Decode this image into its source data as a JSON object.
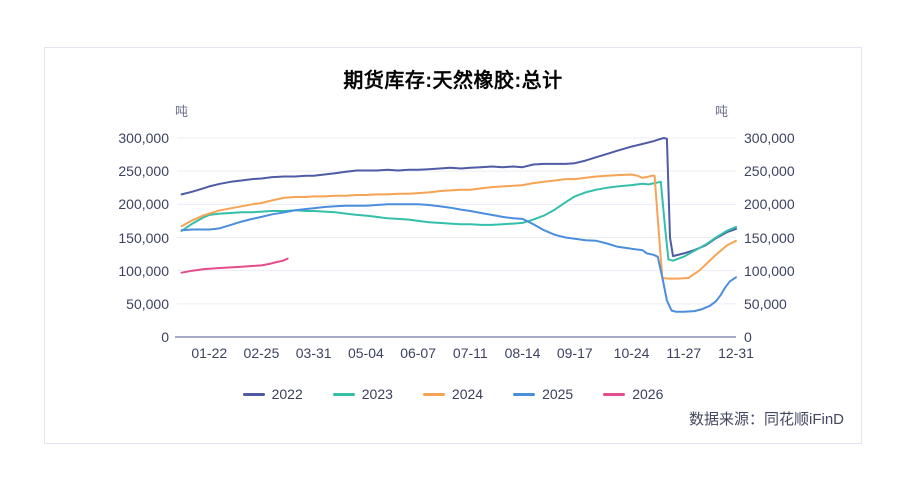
{
  "chart": {
    "title": "期货库存:天然橡胶:总计",
    "unit_left": "吨",
    "unit_right": "吨",
    "source": "数据来源：同花顺iFinD"
  },
  "chart_data": {
    "type": "line",
    "title": "期货库存:天然橡胶:总计",
    "ylabel": "吨",
    "ylim": [
      0,
      300000
    ],
    "grid": true,
    "legend_position": "bottom",
    "colors": {
      "grid_line": "#ECECF4",
      "axis_line": "#A8ABC8",
      "tick_text": "#3D4263"
    },
    "y_ticks": [
      {
        "label": "0",
        "value": 0
      },
      {
        "label": "50,000",
        "value": 50000
      },
      {
        "label": "100,000",
        "value": 100000
      },
      {
        "label": "150,000",
        "value": 150000
      },
      {
        "label": "200,000",
        "value": 200000
      },
      {
        "label": "250,000",
        "value": 250000
      },
      {
        "label": "300,000",
        "value": 300000
      }
    ],
    "x_ticks": [
      {
        "label": "01-22",
        "day": 21
      },
      {
        "label": "02-25",
        "day": 55
      },
      {
        "label": "03-31",
        "day": 89
      },
      {
        "label": "05-04",
        "day": 123
      },
      {
        "label": "06-07",
        "day": 157
      },
      {
        "label": "07-11",
        "day": 191
      },
      {
        "label": "08-14",
        "day": 225
      },
      {
        "label": "09-17",
        "day": 259
      },
      {
        "label": "10-24",
        "day": 296
      },
      {
        "label": "11-27",
        "day": 330
      },
      {
        "label": "12-31",
        "day": 364
      }
    ],
    "x_domain_days": 364,
    "series": [
      {
        "name": "2022",
        "color": "#4F5BA4",
        "points": [
          [
            3,
            215000
          ],
          [
            10,
            219000
          ],
          [
            17,
            224000
          ],
          [
            21,
            227000
          ],
          [
            28,
            231000
          ],
          [
            35,
            234000
          ],
          [
            42,
            236000
          ],
          [
            49,
            238000
          ],
          [
            55,
            239000
          ],
          [
            62,
            241000
          ],
          [
            70,
            242000
          ],
          [
            77,
            242000
          ],
          [
            84,
            243000
          ],
          [
            89,
            243000
          ],
          [
            96,
            245000
          ],
          [
            103,
            247000
          ],
          [
            110,
            249000
          ],
          [
            117,
            251000
          ],
          [
            123,
            251000
          ],
          [
            130,
            251000
          ],
          [
            137,
            252000
          ],
          [
            144,
            251000
          ],
          [
            151,
            252000
          ],
          [
            157,
            252000
          ],
          [
            164,
            253000
          ],
          [
            171,
            254000
          ],
          [
            178,
            255000
          ],
          [
            185,
            254000
          ],
          [
            191,
            255000
          ],
          [
            198,
            256000
          ],
          [
            205,
            257000
          ],
          [
            212,
            256000
          ],
          [
            219,
            257000
          ],
          [
            225,
            256000
          ],
          [
            232,
            260000
          ],
          [
            239,
            261000
          ],
          [
            246,
            261000
          ],
          [
            253,
            261000
          ],
          [
            259,
            262000
          ],
          [
            266,
            266000
          ],
          [
            273,
            271000
          ],
          [
            280,
            276000
          ],
          [
            287,
            281000
          ],
          [
            296,
            287000
          ],
          [
            303,
            291000
          ],
          [
            310,
            295000
          ],
          [
            314,
            298000
          ],
          [
            317,
            300000
          ],
          [
            319,
            299000
          ],
          [
            321,
            150000
          ],
          [
            323,
            122000
          ],
          [
            330,
            126000
          ],
          [
            337,
            131000
          ],
          [
            344,
            138000
          ],
          [
            351,
            149000
          ],
          [
            358,
            158000
          ],
          [
            364,
            163000
          ]
        ]
      },
      {
        "name": "2023",
        "color": "#34BFAA",
        "points": [
          [
            3,
            160000
          ],
          [
            10,
            171000
          ],
          [
            17,
            180000
          ],
          [
            21,
            184000
          ],
          [
            28,
            186000
          ],
          [
            35,
            187000
          ],
          [
            42,
            188000
          ],
          [
            49,
            188000
          ],
          [
            55,
            189000
          ],
          [
            62,
            190000
          ],
          [
            70,
            190000
          ],
          [
            77,
            191000
          ],
          [
            84,
            190000
          ],
          [
            89,
            190000
          ],
          [
            96,
            189000
          ],
          [
            103,
            188000
          ],
          [
            110,
            186000
          ],
          [
            117,
            184000
          ],
          [
            123,
            183000
          ],
          [
            130,
            181000
          ],
          [
            137,
            179000
          ],
          [
            144,
            178000
          ],
          [
            151,
            177000
          ],
          [
            157,
            175000
          ],
          [
            164,
            173000
          ],
          [
            171,
            172000
          ],
          [
            178,
            171000
          ],
          [
            185,
            170000
          ],
          [
            191,
            170000
          ],
          [
            198,
            169000
          ],
          [
            205,
            169000
          ],
          [
            212,
            170000
          ],
          [
            219,
            171000
          ],
          [
            225,
            172000
          ],
          [
            232,
            177000
          ],
          [
            239,
            183000
          ],
          [
            246,
            192000
          ],
          [
            253,
            203000
          ],
          [
            259,
            212000
          ],
          [
            266,
            218000
          ],
          [
            273,
            222000
          ],
          [
            280,
            225000
          ],
          [
            287,
            227000
          ],
          [
            296,
            229000
          ],
          [
            303,
            231000
          ],
          [
            307,
            230000
          ],
          [
            311,
            232000
          ],
          [
            315,
            234000
          ],
          [
            318,
            160000
          ],
          [
            320,
            117000
          ],
          [
            323,
            115000
          ],
          [
            330,
            121000
          ],
          [
            337,
            130000
          ],
          [
            344,
            139000
          ],
          [
            351,
            150000
          ],
          [
            358,
            160000
          ],
          [
            364,
            166000
          ]
        ]
      },
      {
        "name": "2024",
        "color": "#F6A354",
        "points": [
          [
            3,
            167000
          ],
          [
            10,
            176000
          ],
          [
            17,
            183000
          ],
          [
            21,
            186000
          ],
          [
            28,
            191000
          ],
          [
            35,
            194000
          ],
          [
            42,
            197000
          ],
          [
            49,
            200000
          ],
          [
            55,
            202000
          ],
          [
            62,
            206000
          ],
          [
            70,
            210000
          ],
          [
            77,
            211000
          ],
          [
            84,
            211000
          ],
          [
            89,
            212000
          ],
          [
            96,
            212000
          ],
          [
            103,
            213000
          ],
          [
            110,
            213000
          ],
          [
            117,
            214000
          ],
          [
            123,
            214000
          ],
          [
            130,
            215000
          ],
          [
            137,
            215000
          ],
          [
            144,
            216000
          ],
          [
            151,
            216000
          ],
          [
            157,
            217000
          ],
          [
            164,
            218000
          ],
          [
            171,
            220000
          ],
          [
            178,
            221000
          ],
          [
            185,
            222000
          ],
          [
            191,
            222000
          ],
          [
            198,
            224000
          ],
          [
            205,
            226000
          ],
          [
            212,
            227000
          ],
          [
            219,
            228000
          ],
          [
            225,
            229000
          ],
          [
            232,
            232000
          ],
          [
            239,
            234000
          ],
          [
            246,
            236000
          ],
          [
            253,
            238000
          ],
          [
            259,
            238000
          ],
          [
            266,
            240000
          ],
          [
            273,
            242000
          ],
          [
            280,
            243000
          ],
          [
            287,
            244000
          ],
          [
            296,
            245000
          ],
          [
            300,
            243000
          ],
          [
            303,
            240000
          ],
          [
            306,
            241000
          ],
          [
            309,
            243000
          ],
          [
            311,
            243000
          ],
          [
            313,
            180000
          ],
          [
            316,
            89000
          ],
          [
            320,
            88000
          ],
          [
            326,
            88000
          ],
          [
            333,
            89000
          ],
          [
            340,
            100000
          ],
          [
            346,
            113000
          ],
          [
            351,
            124000
          ],
          [
            358,
            138000
          ],
          [
            364,
            145000
          ]
        ]
      },
      {
        "name": "2025",
        "color": "#4B8EDB",
        "points": [
          [
            3,
            161000
          ],
          [
            10,
            162000
          ],
          [
            17,
            162000
          ],
          [
            21,
            162000
          ],
          [
            25,
            163000
          ],
          [
            28,
            164000
          ],
          [
            35,
            169000
          ],
          [
            42,
            174000
          ],
          [
            49,
            178000
          ],
          [
            55,
            181000
          ],
          [
            62,
            185000
          ],
          [
            70,
            188000
          ],
          [
            77,
            191000
          ],
          [
            84,
            193000
          ],
          [
            89,
            194000
          ],
          [
            96,
            196000
          ],
          [
            103,
            197000
          ],
          [
            110,
            198000
          ],
          [
            117,
            198000
          ],
          [
            123,
            198000
          ],
          [
            130,
            199000
          ],
          [
            137,
            200000
          ],
          [
            144,
            200000
          ],
          [
            151,
            200000
          ],
          [
            157,
            200000
          ],
          [
            164,
            199000
          ],
          [
            171,
            197000
          ],
          [
            178,
            195000
          ],
          [
            185,
            192000
          ],
          [
            191,
            190000
          ],
          [
            198,
            187000
          ],
          [
            205,
            184000
          ],
          [
            212,
            181000
          ],
          [
            219,
            179000
          ],
          [
            225,
            178000
          ],
          [
            232,
            170000
          ],
          [
            239,
            161000
          ],
          [
            246,
            154000
          ],
          [
            253,
            150000
          ],
          [
            259,
            148000
          ],
          [
            266,
            146000
          ],
          [
            273,
            145000
          ],
          [
            280,
            141000
          ],
          [
            287,
            136000
          ],
          [
            296,
            133000
          ],
          [
            303,
            131000
          ],
          [
            306,
            126000
          ],
          [
            310,
            124000
          ],
          [
            313,
            121000
          ],
          [
            316,
            90000
          ],
          [
            319,
            55000
          ],
          [
            322,
            40000
          ],
          [
            325,
            38000
          ],
          [
            330,
            38000
          ],
          [
            337,
            39000
          ],
          [
            342,
            42000
          ],
          [
            347,
            47000
          ],
          [
            351,
            54000
          ],
          [
            354,
            63000
          ],
          [
            357,
            75000
          ],
          [
            360,
            84000
          ],
          [
            364,
            90000
          ]
        ]
      },
      {
        "name": "2026",
        "color": "#E64C8C",
        "points": [
          [
            3,
            97000
          ],
          [
            10,
            100000
          ],
          [
            17,
            102000
          ],
          [
            21,
            103000
          ],
          [
            28,
            104000
          ],
          [
            35,
            105000
          ],
          [
            42,
            106000
          ],
          [
            49,
            107000
          ],
          [
            55,
            108000
          ],
          [
            60,
            110000
          ],
          [
            65,
            113000
          ],
          [
            69,
            115000
          ],
          [
            72,
            118000
          ]
        ]
      }
    ]
  }
}
